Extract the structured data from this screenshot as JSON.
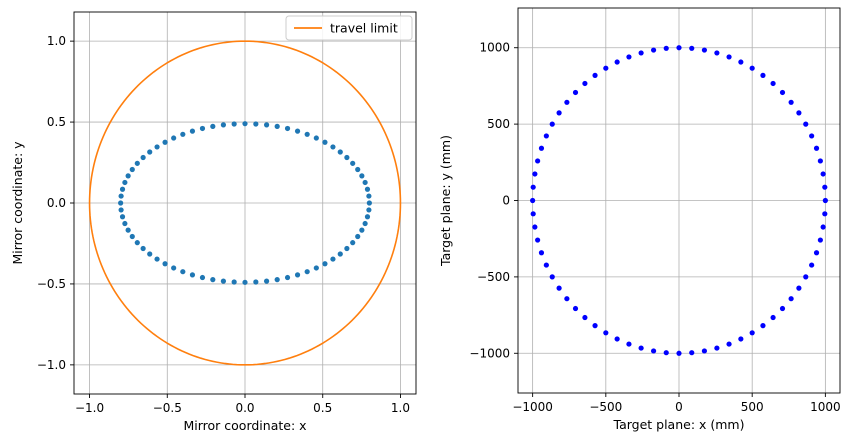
{
  "chart_data": [
    {
      "type": "scatter",
      "xlabel": "Mirror coordinate: x",
      "ylabel": "Mirror coordinate: y",
      "xlim": [
        -1.0,
        1.0
      ],
      "ylim": [
        -1.0,
        1.0
      ],
      "xticks": [
        -1.0,
        -0.5,
        0.0,
        0.5,
        1.0
      ],
      "yticks": [
        -1.0,
        -0.5,
        0.0,
        0.5,
        1.0
      ],
      "xtick_labels": [
        "−1.0",
        "−0.5",
        "0.0",
        "0.5",
        "1.0"
      ],
      "ytick_labels": [
        "−1.0",
        "−0.5",
        "0.0",
        "0.5",
        "1.0"
      ],
      "grid": true,
      "legend": {
        "placement": "top-right",
        "entries": [
          "travel limit"
        ]
      },
      "series": [
        {
          "kind": "scatter-ellipse",
          "color": "#1f77b4",
          "center": [
            0.0,
            0.0
          ],
          "rx": 0.8,
          "ry": 0.49,
          "count": 72
        },
        {
          "kind": "line-circle",
          "name": "travel limit",
          "color": "#ff7f0e",
          "center": [
            0.0,
            0.0
          ],
          "radius": 1.0
        }
      ]
    },
    {
      "type": "scatter",
      "xlabel": "Target plane: x (mm)",
      "ylabel": "Target plane: y (mm)",
      "xlim": [
        -1000,
        1000
      ],
      "ylim": [
        -1000,
        1000
      ],
      "xticks": [
        -1000,
        -500,
        0,
        500,
        1000
      ],
      "yticks": [
        -1000,
        -500,
        0,
        500,
        1000
      ],
      "xtick_labels": [
        "−1000",
        "−500",
        "0",
        "500",
        "1000"
      ],
      "ytick_labels": [
        "−1000",
        "−500",
        "0",
        "500",
        "1000"
      ],
      "grid": true,
      "series": [
        {
          "kind": "scatter-circle",
          "color": "#0000ff",
          "center": [
            0,
            0
          ],
          "radius": 1000,
          "count": 72
        }
      ]
    }
  ]
}
